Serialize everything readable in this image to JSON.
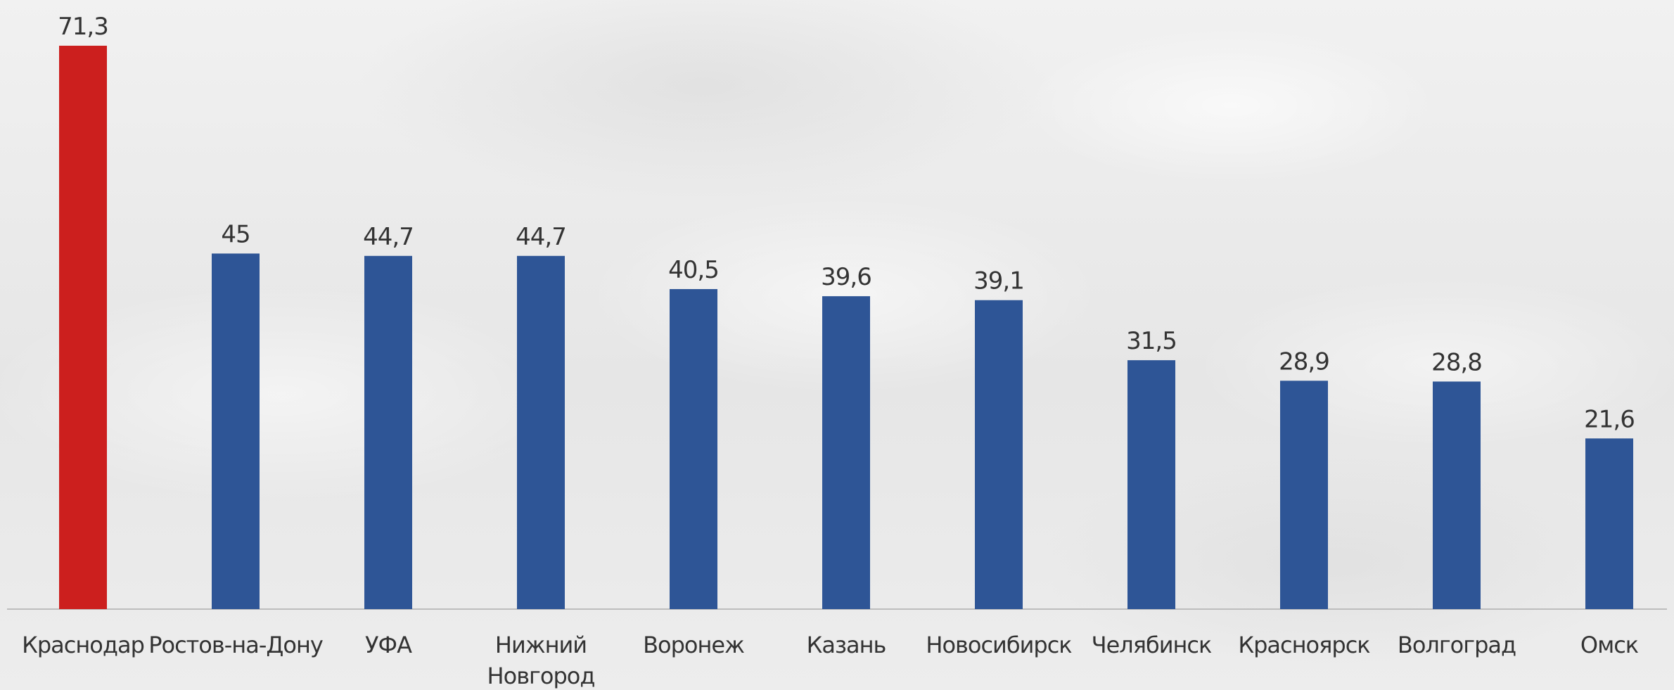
{
  "chart_data": {
    "type": "bar",
    "categories": [
      [
        "Краснодар"
      ],
      [
        "Ростов-на-Дону"
      ],
      [
        "УФА"
      ],
      [
        "Нижний",
        "Новгород"
      ],
      [
        "Воронеж"
      ],
      [
        "Казань"
      ],
      [
        "Новосибирск"
      ],
      [
        "Челябинск"
      ],
      [
        "Красноярск"
      ],
      [
        "Волгоград"
      ],
      [
        "Омск"
      ]
    ],
    "values": [
      71.3,
      45,
      44.7,
      44.7,
      40.5,
      39.6,
      39.1,
      31.5,
      28.9,
      28.8,
      21.6
    ],
    "value_labels": [
      "71,3",
      "45",
      "44,7",
      "44,7",
      "40,5",
      "39,6",
      "39,1",
      "31,5",
      "28,9",
      "28,8",
      "21,6"
    ],
    "highlight_index": 0,
    "colors": {
      "highlight": "#cc1f1e",
      "default": "#2e5596",
      "axis": "#bdbdbd",
      "text": "#333333"
    },
    "title": "",
    "xlabel": "",
    "ylabel": "",
    "ylim": [
      0,
      71.3
    ],
    "grid": false,
    "legend": "none"
  }
}
